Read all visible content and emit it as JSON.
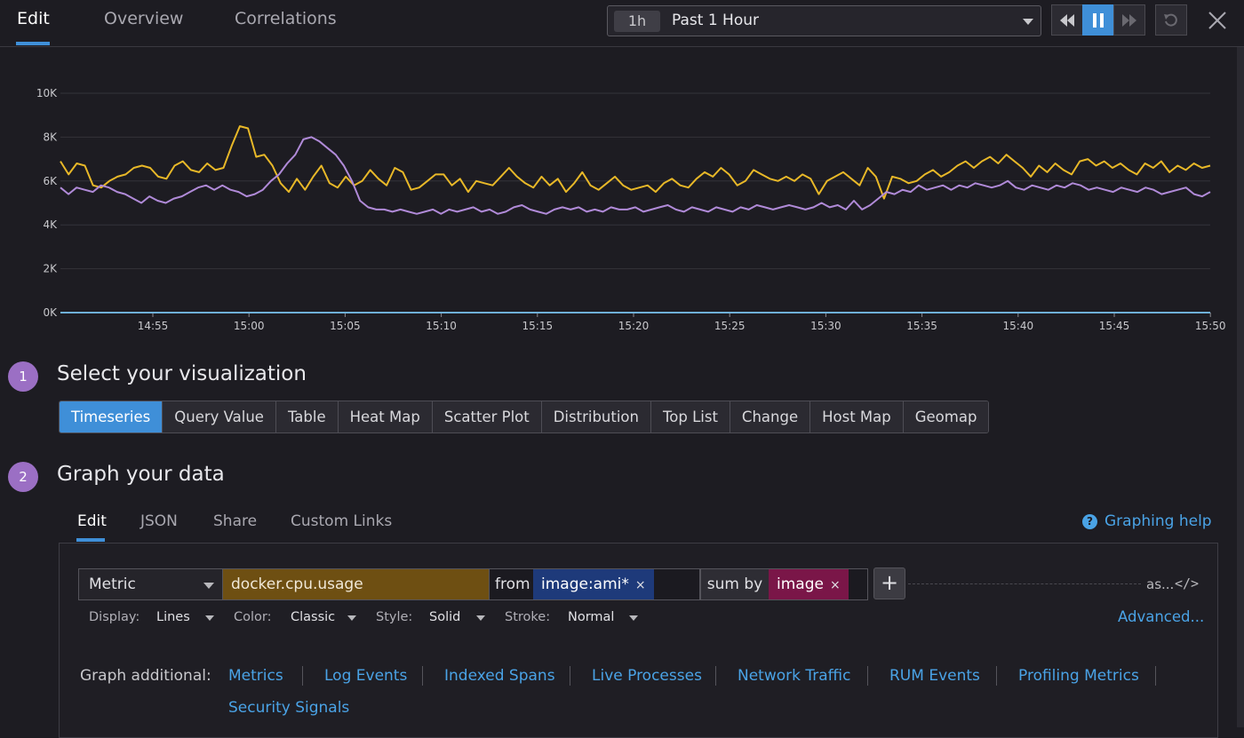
{
  "header": {
    "tabs": [
      {
        "label": "Edit",
        "active": true
      },
      {
        "label": "Overview",
        "active": false
      },
      {
        "label": "Correlations",
        "active": false
      }
    ],
    "time_selector": {
      "badge": "1h",
      "label": "Past 1 Hour"
    },
    "playback": {
      "state": "paused"
    }
  },
  "chart_data": {
    "type": "line",
    "yticks": [
      "10K",
      "8K",
      "6K",
      "4K",
      "2K",
      "0K"
    ],
    "xticks": [
      "14:55",
      "15:00",
      "15:05",
      "15:10",
      "15:15",
      "15:20",
      "15:25",
      "15:30",
      "15:35",
      "15:40",
      "15:45",
      "15:50"
    ],
    "ylim": [
      0,
      10000
    ],
    "grid": true,
    "series": [
      {
        "color": "#e8b828",
        "values": [
          6900,
          6300,
          6800,
          6700,
          5800,
          5700,
          6000,
          6200,
          6300,
          6600,
          6700,
          6600,
          6200,
          6100,
          6700,
          6900,
          6500,
          6400,
          6800,
          6500,
          6600,
          7600,
          8500,
          8400,
          7100,
          7200,
          6700,
          5900,
          5500,
          6100,
          5600,
          6200,
          6700,
          5900,
          5700,
          6200,
          5800,
          6000,
          6500,
          6100,
          5800,
          6600,
          6400,
          5600,
          5700,
          6000,
          6300,
          6300,
          5800,
          6100,
          5500,
          6000,
          5900,
          5800,
          6200,
          6600,
          6200,
          5900,
          5700,
          6200,
          5800,
          6100,
          5500,
          5900,
          6400,
          5800,
          5600,
          5900,
          6200,
          5800,
          5600,
          5700,
          5800,
          5500,
          5900,
          6100,
          5800,
          5700,
          6100,
          6400,
          6200,
          6600,
          6300,
          5800,
          6000,
          6500,
          6300,
          6100,
          6000,
          6200,
          6000,
          6300,
          6100,
          5400,
          6000,
          6200,
          6400,
          6100,
          5800,
          6600,
          6200,
          5200,
          6200,
          6100,
          5900,
          6000,
          6300,
          6500,
          6200,
          6400,
          6700,
          6900,
          6600,
          6900,
          7100,
          6800,
          7200,
          6900,
          6600,
          6200,
          6700,
          6400,
          6800,
          6500,
          6300,
          6900,
          7000,
          6700,
          6900,
          6600,
          6800,
          6500,
          6300,
          6800,
          6600,
          6900,
          6400,
          6700,
          6500,
          6800,
          6600,
          6700
        ]
      },
      {
        "color": "#b08ad8",
        "values": [
          5700,
          5400,
          5700,
          5600,
          5500,
          5800,
          5700,
          5500,
          5400,
          5200,
          5000,
          5300,
          5100,
          5000,
          5200,
          5300,
          5500,
          5700,
          5800,
          5600,
          5800,
          5600,
          5500,
          5300,
          5400,
          5600,
          6000,
          6300,
          6800,
          7200,
          7900,
          8000,
          7800,
          7500,
          7200,
          6700,
          6000,
          5100,
          4800,
          4700,
          4700,
          4600,
          4700,
          4600,
          4500,
          4600,
          4700,
          4500,
          4700,
          4600,
          4700,
          4800,
          4600,
          4700,
          4500,
          4600,
          4800,
          4900,
          4700,
          4600,
          4500,
          4700,
          4800,
          4700,
          4800,
          4600,
          4700,
          4600,
          4800,
          4700,
          4700,
          4800,
          4600,
          4700,
          4800,
          4900,
          4700,
          4600,
          4800,
          4700,
          4600,
          4800,
          4700,
          4600,
          4800,
          4700,
          4900,
          4800,
          4700,
          4800,
          4900,
          4800,
          4700,
          4800,
          5000,
          4800,
          4900,
          4700,
          5100,
          4700,
          4900,
          5200,
          5500,
          5400,
          5600,
          5500,
          5800,
          5600,
          5700,
          5800,
          5600,
          5800,
          5700,
          5900,
          5800,
          5700,
          5800,
          6000,
          5700,
          5600,
          5800,
          5700,
          5600,
          5800,
          5700,
          5900,
          5800,
          5600,
          5700,
          5600,
          5500,
          5700,
          5600,
          5500,
          5700,
          5600,
          5400,
          5500,
          5600,
          5700,
          5400,
          5300,
          5500
        ]
      },
      {
        "color": "#6fb0d8",
        "values": [
          0,
          0,
          0,
          0,
          0,
          0,
          0,
          0,
          0,
          0,
          0,
          0
        ]
      }
    ]
  },
  "steps": [
    {
      "num": "1",
      "title": "Select your visualization"
    },
    {
      "num": "2",
      "title": "Graph your data"
    }
  ],
  "viz_types": [
    {
      "label": "Timeseries",
      "active": true
    },
    {
      "label": "Query Value",
      "active": false
    },
    {
      "label": "Table",
      "active": false
    },
    {
      "label": "Heat Map",
      "active": false
    },
    {
      "label": "Scatter Plot",
      "active": false
    },
    {
      "label": "Distribution",
      "active": false
    },
    {
      "label": "Top List",
      "active": false
    },
    {
      "label": "Change",
      "active": false
    },
    {
      "label": "Host Map",
      "active": false
    },
    {
      "label": "Geomap",
      "active": false
    }
  ],
  "graph_tabs": [
    {
      "label": "Edit",
      "active": true
    },
    {
      "label": "JSON",
      "active": false
    },
    {
      "label": "Share",
      "active": false
    },
    {
      "label": "Custom Links",
      "active": false
    }
  ],
  "help_link": "Graphing help",
  "query": {
    "source": "Metric",
    "metric": "docker.cpu.usage",
    "from_label": "from",
    "from_tag": "image:ami*",
    "sum_label": "sum by",
    "sum_tag": "image",
    "alias_label": "as...",
    "remove_glyph": "×",
    "add_glyph": "+",
    "code_glyph": "</>"
  },
  "display_options": {
    "display_label": "Display:",
    "display_value": "Lines",
    "color_label": "Color:",
    "color_value": "Classic",
    "style_label": "Style:",
    "style_value": "Solid",
    "stroke_label": "Stroke:",
    "stroke_value": "Normal",
    "advanced": "Advanced..."
  },
  "graph_additional": {
    "label": "Graph additional:",
    "links": [
      "Metrics",
      "Log Events",
      "Indexed Spans",
      "Live Processes",
      "Network Traffic",
      "RUM Events",
      "Profiling Metrics",
      "Security Signals"
    ]
  }
}
